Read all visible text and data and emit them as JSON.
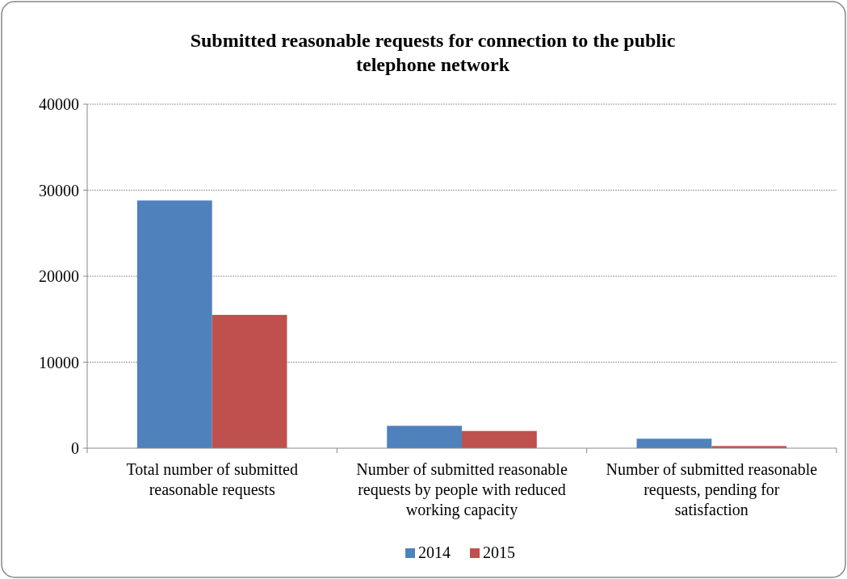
{
  "chart_data": {
    "type": "bar",
    "title": "Submitted reasonable requests for connection to the public telephone network",
    "categories": [
      "Total number of submitted reasonable requests",
      "Number of submitted reasonable requests by people with reduced working capacity",
      "Number of submitted reasonable requests,  pending for satisfaction"
    ],
    "series": [
      {
        "name": "2014",
        "color": "#4f81bd",
        "values": [
          28800,
          2600,
          1100
        ]
      },
      {
        "name": "2015",
        "color": "#c0504d",
        "values": [
          15500,
          2000,
          250
        ]
      }
    ],
    "ylim": [
      0,
      40000
    ],
    "yticks": [
      0,
      10000,
      20000,
      30000,
      40000
    ],
    "grid": "y",
    "legend": "bottom"
  }
}
